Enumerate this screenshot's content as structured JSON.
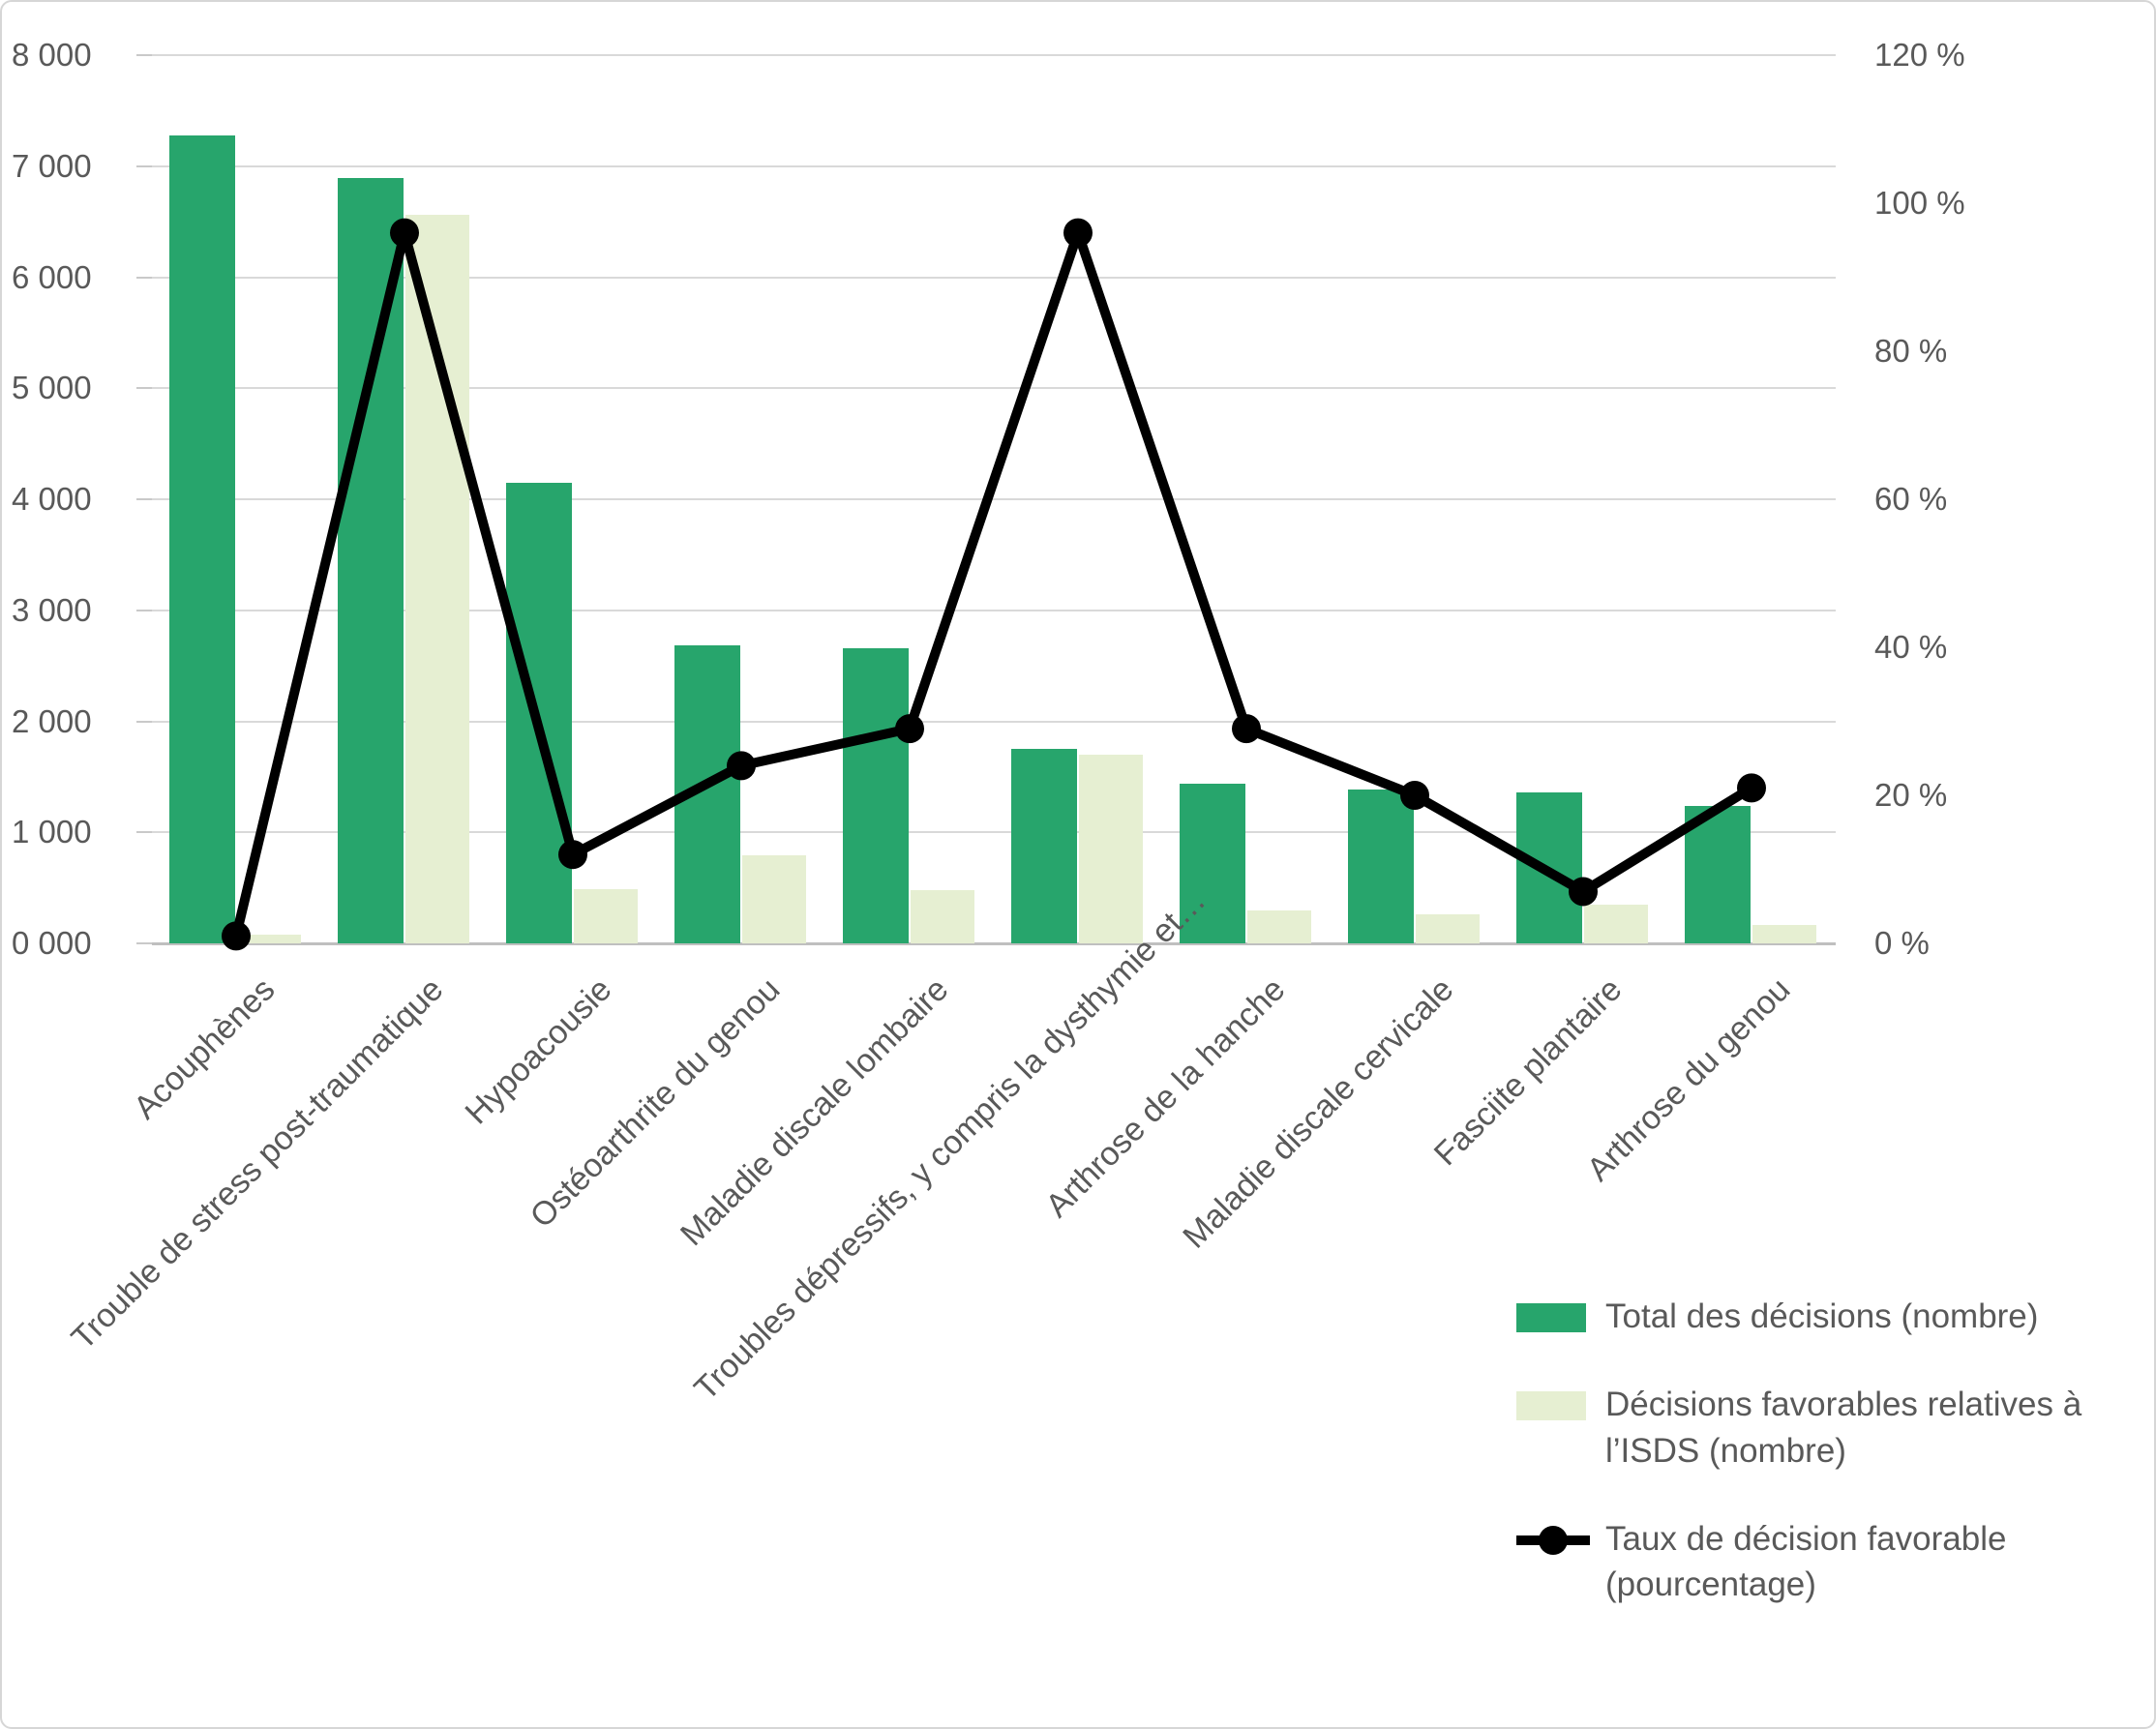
{
  "chart_data": {
    "type": "bar+line combo",
    "categories": [
      "Acouphènes",
      "Trouble de stress post-traumatique",
      "Hypoacousie",
      "Ostéoarthrite du genou",
      "Maladie discale lombaire",
      "Troubles dépressifs, y compris la dysthymie et…",
      "Arthrose de la hanche",
      "Maladie discale cervicale",
      "Fasciite plantaire",
      "Arthrose du genou"
    ],
    "series": [
      {
        "name": "Total des décisions (nombre)",
        "type": "bar",
        "axis": "left",
        "color": "#27a56c",
        "values": [
          7280,
          6890,
          4150,
          2680,
          2660,
          1750,
          1440,
          1390,
          1360,
          1240
        ]
      },
      {
        "name": "Décisions favorables relatives à l’ISDS (nombre)",
        "type": "bar",
        "axis": "left",
        "color": "#e6efd2",
        "values": [
          80,
          6560,
          490,
          790,
          480,
          1700,
          300,
          260,
          350,
          170
        ]
      },
      {
        "name": "Taux de décision favorable (pourcentage)",
        "type": "line",
        "axis": "right",
        "color": "#000000",
        "values": [
          1,
          96,
          12,
          24,
          29,
          96,
          29,
          20,
          7,
          21
        ]
      }
    ],
    "left_axis": {
      "min": 0,
      "max": 8000,
      "step": 1000,
      "tick_labels": [
        "8 000",
        "7 000",
        "6 000",
        "5 000",
        "4 000",
        "3 000",
        "2 000",
        "1 000",
        "0 000"
      ]
    },
    "right_axis": {
      "min": 0,
      "max": 120,
      "step": 20,
      "tick_labels": [
        "120 %",
        "100 %",
        "80 %",
        "60 %",
        "40 %",
        "20 %",
        "0 %"
      ]
    },
    "grid": true,
    "legend_position": "bottom-right"
  },
  "legend": {
    "items": [
      {
        "label": "Total des décisions (nombre)",
        "swatch": "dark-green-rect"
      },
      {
        "label": "Décisions favorables relatives à l’ISDS (nombre)",
        "swatch": "light-green-rect"
      },
      {
        "label": "Taux de décision favorable (pourcentage)",
        "swatch": "black-line-marker"
      }
    ]
  },
  "colors": {
    "bar_total": "#27a56c",
    "bar_favorable": "#e6efd2",
    "line": "#000000",
    "gridline": "#d9d9d9",
    "axis_line": "#bfbfbf",
    "text": "#595959"
  }
}
